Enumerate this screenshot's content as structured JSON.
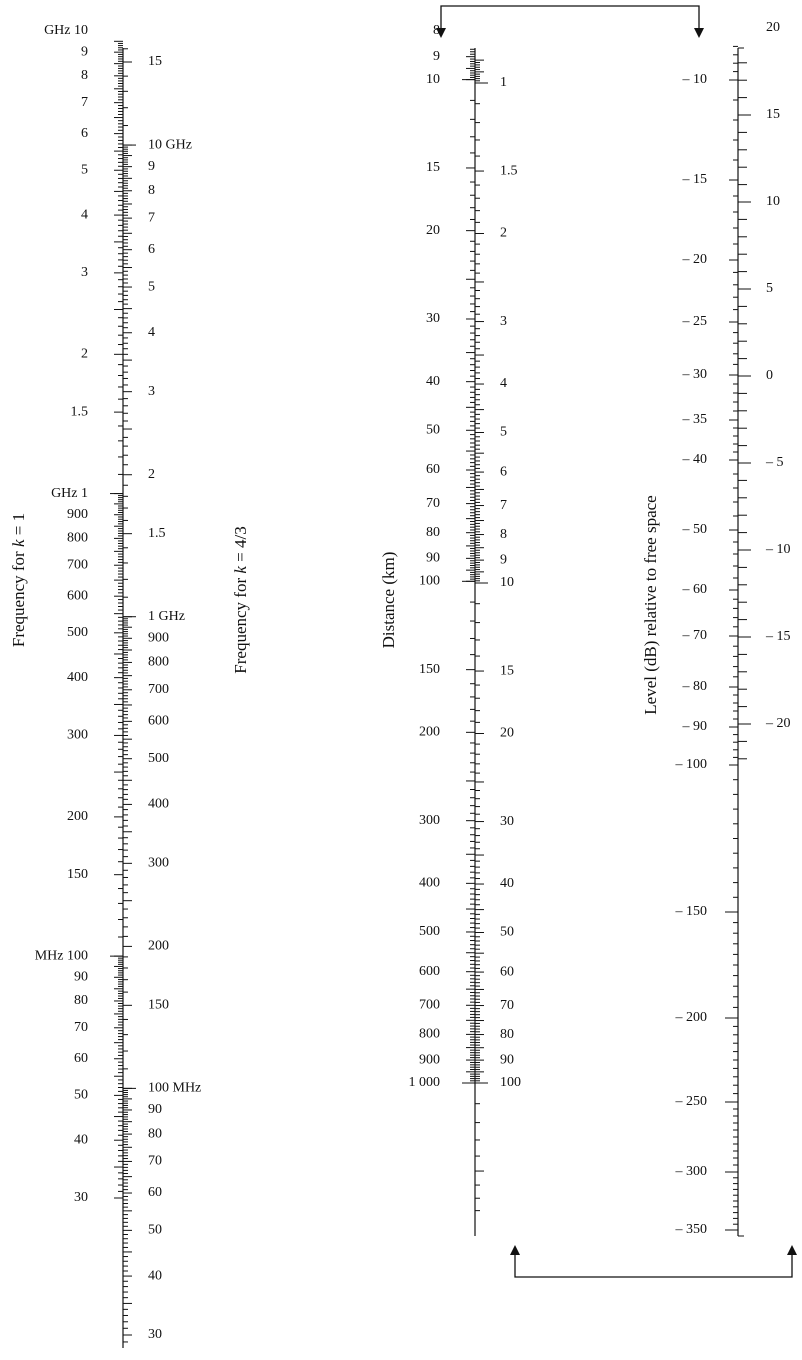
{
  "nomogram": {
    "colors": {
      "ink": "#111111",
      "background": "#ffffff"
    },
    "scale_freq_k1": {
      "title_prefix": "Frequency for ",
      "title_var": "k",
      "title_suffix": " = 1",
      "labels": [
        {
          "v": 10,
          "t": "GHz  10"
        },
        {
          "v": 9,
          "t": "9"
        },
        {
          "v": 8,
          "t": "8"
        },
        {
          "v": 7,
          "t": "7"
        },
        {
          "v": 6,
          "t": "6"
        },
        {
          "v": 5,
          "t": "5"
        },
        {
          "v": 4,
          "t": "4"
        },
        {
          "v": 3,
          "t": "3"
        },
        {
          "v": 2,
          "t": "2"
        },
        {
          "v": 1.5,
          "t": "1.5"
        },
        {
          "v": 1,
          "t": "GHz    1"
        },
        {
          "v": 0.9,
          "t": "900"
        },
        {
          "v": 0.8,
          "t": "800"
        },
        {
          "v": 0.7,
          "t": "700"
        },
        {
          "v": 0.6,
          "t": "600"
        },
        {
          "v": 0.5,
          "t": "500"
        },
        {
          "v": 0.4,
          "t": "400"
        },
        {
          "v": 0.3,
          "t": "300"
        },
        {
          "v": 0.2,
          "t": "200"
        },
        {
          "v": 0.15,
          "t": "150"
        },
        {
          "v": 0.1,
          "t": "MHz 100"
        },
        {
          "v": 0.09,
          "t": "90"
        },
        {
          "v": 0.08,
          "t": "80"
        },
        {
          "v": 0.07,
          "t": "70"
        },
        {
          "v": 0.06,
          "t": "60"
        },
        {
          "v": 0.05,
          "t": "50"
        },
        {
          "v": 0.04,
          "t": "40"
        },
        {
          "v": 0.03,
          "t": "30"
        }
      ]
    },
    "scale_freq_k43": {
      "title_prefix": "Frequency for ",
      "title_var": "k",
      "title_suffix": " = 4/3",
      "labels": [
        {
          "v": 15,
          "t": "15"
        },
        {
          "v": 10,
          "t": "10  GHz"
        },
        {
          "v": 9,
          "t": "9"
        },
        {
          "v": 8,
          "t": "8"
        },
        {
          "v": 7,
          "t": "7"
        },
        {
          "v": 6,
          "t": "6"
        },
        {
          "v": 5,
          "t": "5"
        },
        {
          "v": 4,
          "t": "4"
        },
        {
          "v": 3,
          "t": "3"
        },
        {
          "v": 2,
          "t": "2"
        },
        {
          "v": 1.5,
          "t": "1.5"
        },
        {
          "v": 1,
          "t": "1    GHz"
        },
        {
          "v": 0.9,
          "t": "900"
        },
        {
          "v": 0.8,
          "t": "800"
        },
        {
          "v": 0.7,
          "t": "700"
        },
        {
          "v": 0.6,
          "t": "600"
        },
        {
          "v": 0.5,
          "t": "500"
        },
        {
          "v": 0.4,
          "t": "400"
        },
        {
          "v": 0.3,
          "t": "300"
        },
        {
          "v": 0.2,
          "t": "200"
        },
        {
          "v": 0.15,
          "t": "150"
        },
        {
          "v": 0.1,
          "t": "100 MHz"
        },
        {
          "v": 0.09,
          "t": "90"
        },
        {
          "v": 0.08,
          "t": "80"
        },
        {
          "v": 0.07,
          "t": "70"
        },
        {
          "v": 0.06,
          "t": "60"
        },
        {
          "v": 0.05,
          "t": "50"
        },
        {
          "v": 0.04,
          "t": "40"
        },
        {
          "v": 0.03,
          "t": "30"
        }
      ]
    },
    "scale_distance": {
      "title": "Distance (km)",
      "labels_left": [
        {
          "v": 8,
          "t": "8"
        },
        {
          "v": 9,
          "t": "9"
        },
        {
          "v": 10,
          "t": "10"
        },
        {
          "v": 15,
          "t": "15"
        },
        {
          "v": 20,
          "t": "20"
        },
        {
          "v": 30,
          "t": "30"
        },
        {
          "v": 40,
          "t": "40"
        },
        {
          "v": 50,
          "t": "50"
        },
        {
          "v": 60,
          "t": "60"
        },
        {
          "v": 70,
          "t": "70"
        },
        {
          "v": 80,
          "t": "80"
        },
        {
          "v": 90,
          "t": "90"
        },
        {
          "v": 100,
          "t": "100"
        },
        {
          "v": 150,
          "t": "150"
        },
        {
          "v": 200,
          "t": "200"
        },
        {
          "v": 300,
          "t": "300"
        },
        {
          "v": 400,
          "t": "400"
        },
        {
          "v": 500,
          "t": "500"
        },
        {
          "v": 600,
          "t": "600"
        },
        {
          "v": 700,
          "t": "700"
        },
        {
          "v": 800,
          "t": "800"
        },
        {
          "v": 900,
          "t": "900"
        },
        {
          "v": 1000,
          "t": "1 000"
        }
      ],
      "labels_right": [
        {
          "v": 1,
          "t": "1"
        },
        {
          "v": 1.5,
          "t": "1.5"
        },
        {
          "v": 2,
          "t": "2"
        },
        {
          "v": 3,
          "t": "3"
        },
        {
          "v": 4,
          "t": "4"
        },
        {
          "v": 5,
          "t": "5"
        },
        {
          "v": 6,
          "t": "6"
        },
        {
          "v": 7,
          "t": "7"
        },
        {
          "v": 8,
          "t": "8"
        },
        {
          "v": 9,
          "t": "9"
        },
        {
          "v": 10,
          "t": "10"
        },
        {
          "v": 15,
          "t": "15"
        },
        {
          "v": 20,
          "t": "20"
        },
        {
          "v": 30,
          "t": "30"
        },
        {
          "v": 40,
          "t": "40"
        },
        {
          "v": 50,
          "t": "50"
        },
        {
          "v": 60,
          "t": "60"
        },
        {
          "v": 70,
          "t": "70"
        },
        {
          "v": 80,
          "t": "80"
        },
        {
          "v": 90,
          "t": "90"
        },
        {
          "v": 100,
          "t": "100"
        }
      ]
    },
    "scale_level": {
      "title": "Level (dB) relative to free space",
      "labels_left": [
        {
          "v": -10,
          "t": "– 10"
        },
        {
          "v": -15,
          "t": "– 15"
        },
        {
          "v": -20,
          "t": "– 20"
        },
        {
          "v": -25,
          "t": "– 25"
        },
        {
          "v": -30,
          "t": "– 30"
        },
        {
          "v": -35,
          "t": "– 35"
        },
        {
          "v": -40,
          "t": "– 40"
        },
        {
          "v": -50,
          "t": "– 50"
        },
        {
          "v": -60,
          "t": "– 60"
        },
        {
          "v": -70,
          "t": "– 70"
        },
        {
          "v": -80,
          "t": "– 80"
        },
        {
          "v": -90,
          "t": "– 90"
        },
        {
          "v": -100,
          "t": "– 100"
        },
        {
          "v": -150,
          "t": "– 150"
        },
        {
          "v": -200,
          "t": "– 200"
        },
        {
          "v": -250,
          "t": "– 250"
        },
        {
          "v": -300,
          "t": "– 300"
        },
        {
          "v": -350,
          "t": "– 350"
        }
      ],
      "labels_right": [
        {
          "v": 20,
          "t": "20"
        },
        {
          "v": 15,
          "t": "15"
        },
        {
          "v": 10,
          "t": "10"
        },
        {
          "v": 5,
          "t": "5"
        },
        {
          "v": 0,
          "t": "0"
        },
        {
          "v": -5,
          "t": "– 5"
        },
        {
          "v": -10,
          "t": "– 10"
        },
        {
          "v": -15,
          "t": "– 15"
        },
        {
          "v": -20,
          "t": "– 20"
        }
      ]
    }
  }
}
